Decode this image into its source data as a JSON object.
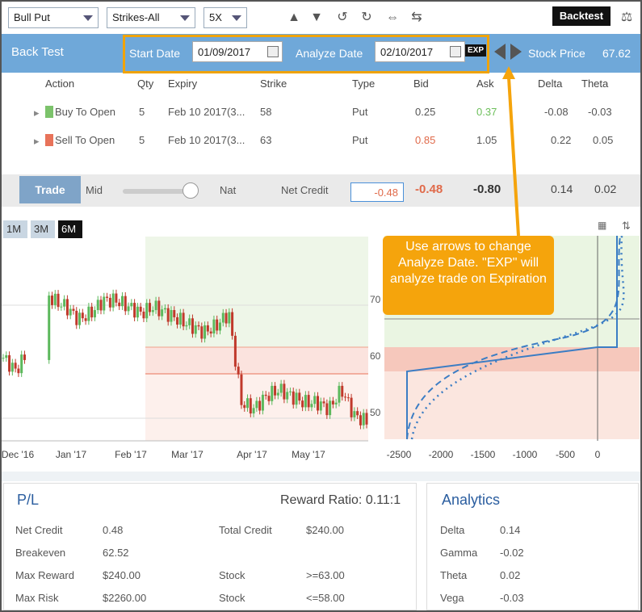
{
  "toolbar": {
    "strategy": "Bull Put",
    "strikes": "Strikes-All",
    "multiplier": "5X",
    "backtest_label": "Backtest"
  },
  "header": {
    "title": "Back Test",
    "start_date_label": "Start Date",
    "start_date": "01/09/2017",
    "analyze_date_label": "Analyze Date",
    "analyze_date": "02/10/2017",
    "exp_label": "EXP",
    "stock_price_label": "Stock Price",
    "stock_price": "67.62"
  },
  "table": {
    "columns": [
      "Action",
      "Qty",
      "Expiry",
      "Strike",
      "Type",
      "Bid",
      "Ask",
      "Delta",
      "Theta"
    ],
    "rows": [
      {
        "action": "Buy To Open",
        "qty": "5",
        "expiry": "Feb 10 2017(3...",
        "strike": "58",
        "type": "Put",
        "bid": "0.25",
        "ask": "0.37",
        "delta": "-0.08",
        "theta": "-0.03"
      },
      {
        "action": "Sell To Open",
        "qty": "5",
        "expiry": "Feb 10 2017(3...",
        "strike": "63",
        "type": "Put",
        "bid": "0.85",
        "ask": "1.05",
        "delta": "0.22",
        "theta": "0.05"
      }
    ]
  },
  "tradebar": {
    "trade_label": "Trade",
    "mid_label": "Mid",
    "nat_label": "Nat",
    "net_credit_label": "Net Credit",
    "net_credit_value": "-0.48",
    "bid_total": "-0.48",
    "ask_total": "-0.80",
    "delta_total": "0.14",
    "theta_total": "0.02"
  },
  "ranges": [
    "1M",
    "3M",
    "6M"
  ],
  "callout": "Use arrows to change Analyze Date.  \"EXP\" will analyze trade on Expiration",
  "pl": {
    "title": "P/L",
    "reward_ratio": "Reward Ratio: 0.11:1",
    "items": [
      {
        "label": "Net Credit",
        "value": "0.48"
      },
      {
        "label": "Breakeven",
        "value": "62.52"
      },
      {
        "label": "Max Reward",
        "value": "$240.00"
      },
      {
        "label": "Max Risk",
        "value": "$2260.00"
      }
    ],
    "items2": [
      {
        "label": "Total Credit",
        "value": "$240.00"
      },
      {
        "label": "Stock",
        "value": ">=63.00"
      },
      {
        "label": "Stock",
        "value": "<=58.00"
      }
    ]
  },
  "analytics": {
    "title": "Analytics",
    "items": [
      {
        "label": "Delta",
        "value": "0.14"
      },
      {
        "label": "Gamma",
        "value": "-0.02"
      },
      {
        "label": "Theta",
        "value": "0.02"
      },
      {
        "label": "Vega",
        "value": "-0.03"
      }
    ]
  },
  "chart_data": [
    {
      "type": "line",
      "x_labels": [
        "Dec '16",
        "Jan '17",
        "Feb '17",
        "Mar '17",
        "Apr '17",
        "May '17"
      ],
      "y_ticks": [
        70,
        60,
        50
      ],
      "price_path": [
        57,
        55,
        58,
        68,
        66,
        65,
        63,
        64,
        66,
        66,
        65,
        64,
        65,
        64,
        63,
        62,
        61,
        62,
        64,
        50,
        49,
        51,
        52,
        51,
        50,
        50,
        49,
        52,
        48,
        47
      ]
    },
    {
      "type": "line",
      "x_labels": [
        "-2500",
        "-2000",
        "-1500",
        "-1000",
        "-500",
        "0"
      ]
    }
  ]
}
